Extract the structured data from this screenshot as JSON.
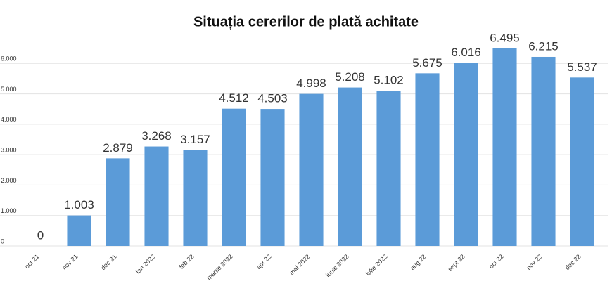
{
  "chart_data": {
    "type": "bar",
    "title": "Situația cererilor de plată achitate",
    "categories": [
      "oct 21",
      "nov 21",
      "dec 21",
      "ian 2022",
      "feb 22",
      "martie 2022",
      "apr 22",
      "mai 2022",
      "iunie 2022",
      "iulie 2022",
      "aug 22",
      "sept 22",
      "oct 22",
      "nov 22",
      "dec 22"
    ],
    "values": [
      0,
      1003,
      2879,
      3268,
      3157,
      4512,
      4503,
      4998,
      5208,
      5102,
      5675,
      6016,
      6495,
      6215,
      5537
    ],
    "value_labels": [
      "0",
      "1.003",
      "2.879",
      "3.268",
      "3.157",
      "4.512",
      "4.503",
      "4.998",
      "5.208",
      "5.102",
      "5.675",
      "6.016",
      "6.495",
      "6.215",
      "5.537"
    ],
    "color": "#5b9bd8",
    "ylim": [
      0,
      7000
    ],
    "yticks": [
      0,
      {
        "value": 1000,
        "label": "1.000"
      },
      {
        "value": 2000,
        "label": "2.000"
      },
      {
        "value": 3000,
        "label": "3.000"
      },
      {
        "value": 4000,
        "label": "4.000"
      },
      {
        "value": 5000,
        "label": "5.000"
      },
      {
        "value": 6000,
        "label": "6.000"
      }
    ],
    "grid": true
  }
}
